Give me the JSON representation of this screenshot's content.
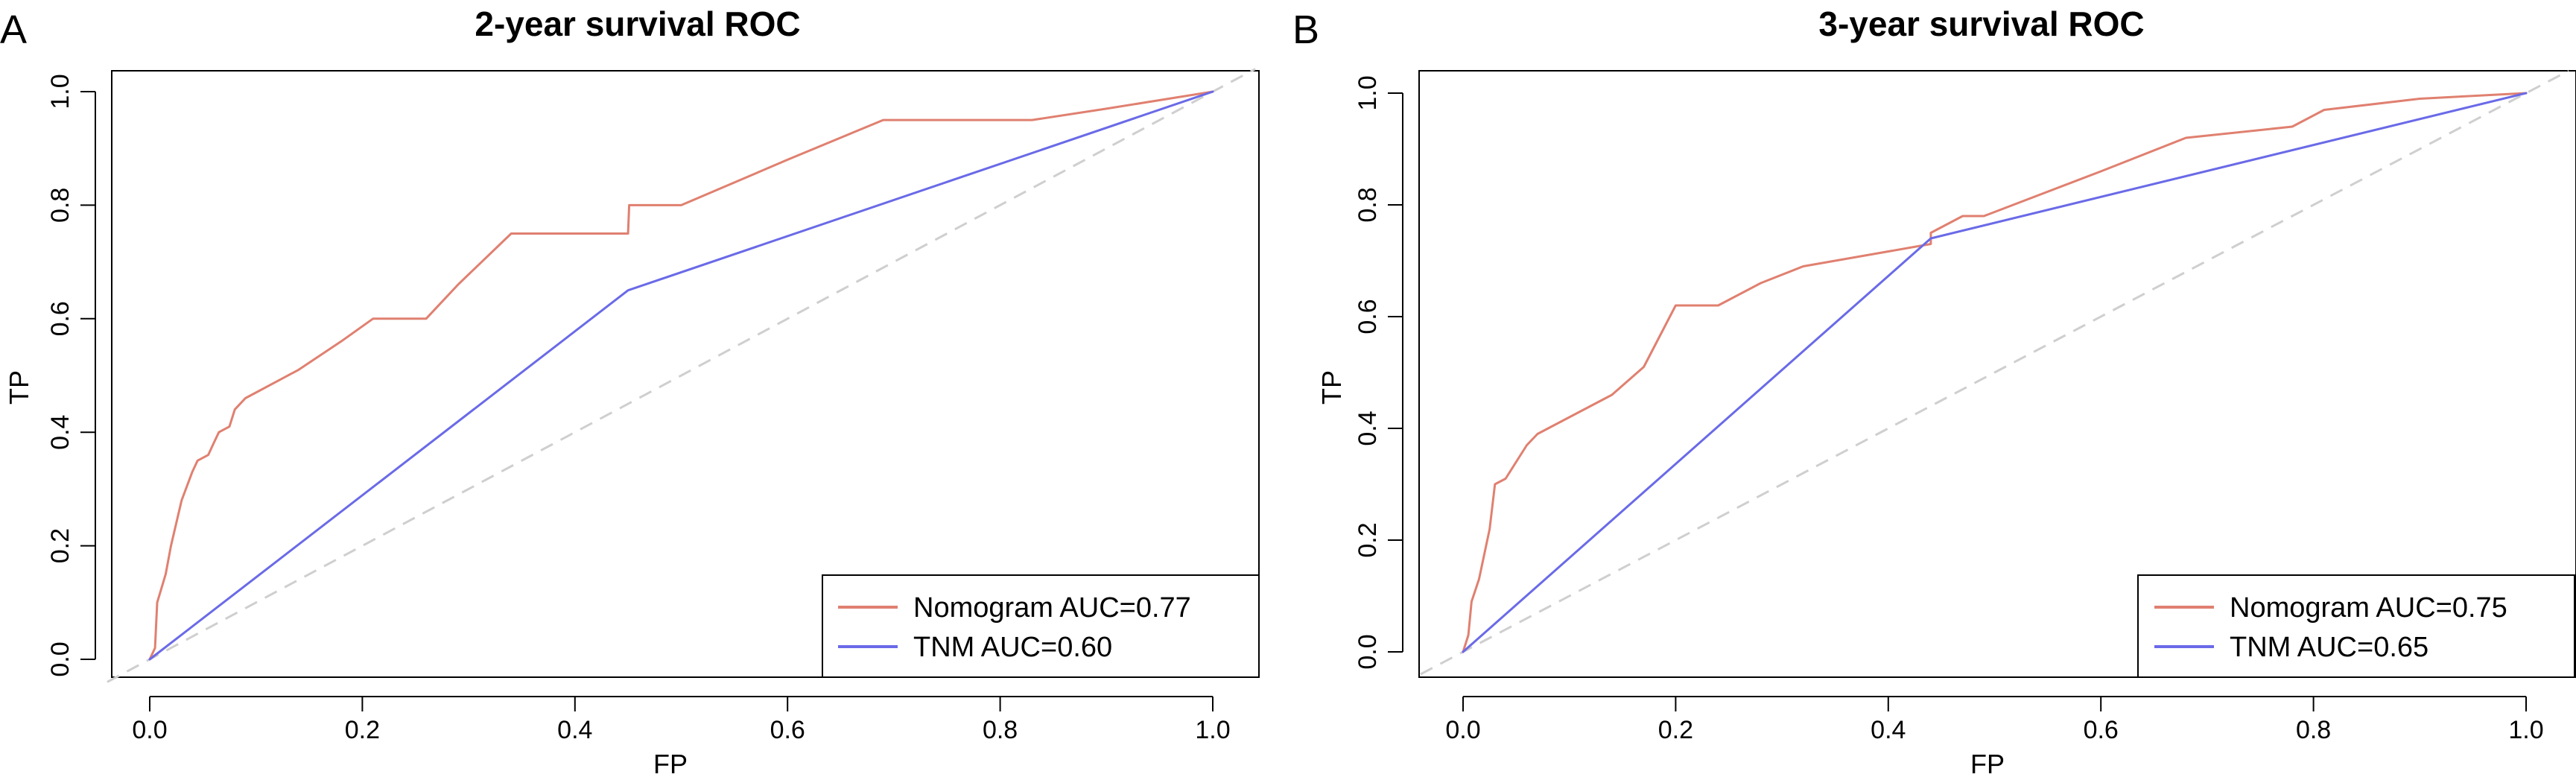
{
  "chart_data": [
    {
      "type": "line",
      "panel_label": "A",
      "title": "2-year survival ROC",
      "xlabel": "FP",
      "ylabel": "TP",
      "xlim": [
        0,
        1
      ],
      "ylim": [
        0,
        1
      ],
      "xticks": [
        "0.0",
        "0.2",
        "0.4",
        "0.6",
        "0.8",
        "1.0"
      ],
      "yticks": [
        "0.0",
        "0.2",
        "0.4",
        "0.6",
        "0.8",
        "1.0"
      ],
      "legend_position": "bottom-right",
      "diagonal_reference": true,
      "series": [
        {
          "name": "Nomogram AUC=0.77",
          "color": "#e08070",
          "points": [
            [
              0,
              0
            ],
            [
              0.005,
              0.02
            ],
            [
              0.007,
              0.1
            ],
            [
              0.015,
              0.15
            ],
            [
              0.02,
              0.2
            ],
            [
              0.03,
              0.28
            ],
            [
              0.04,
              0.33
            ],
            [
              0.045,
              0.35
            ],
            [
              0.055,
              0.36
            ],
            [
              0.06,
              0.38
            ],
            [
              0.065,
              0.4
            ],
            [
              0.075,
              0.41
            ],
            [
              0.08,
              0.44
            ],
            [
              0.09,
              0.46
            ],
            [
              0.14,
              0.51
            ],
            [
              0.18,
              0.56
            ],
            [
              0.21,
              0.6
            ],
            [
              0.26,
              0.6
            ],
            [
              0.29,
              0.66
            ],
            [
              0.34,
              0.75
            ],
            [
              0.45,
              0.75
            ],
            [
              0.451,
              0.8
            ],
            [
              0.5,
              0.8
            ],
            [
              0.6,
              0.88
            ],
            [
              0.69,
              0.95
            ],
            [
              0.83,
              0.95
            ],
            [
              0.9,
              0.97
            ],
            [
              1.0,
              1.0
            ]
          ]
        },
        {
          "name": "TNM AUC=0.60",
          "color": "#6a6ae8",
          "points": [
            [
              0,
              0
            ],
            [
              0.45,
              0.65
            ],
            [
              1.0,
              1.0
            ]
          ]
        }
      ]
    },
    {
      "type": "line",
      "panel_label": "B",
      "title": "3-year survival ROC",
      "xlabel": "FP",
      "ylabel": "TP",
      "xlim": [
        0,
        1
      ],
      "ylim": [
        0,
        1
      ],
      "xticks": [
        "0.0",
        "0.2",
        "0.4",
        "0.6",
        "0.8",
        "1.0"
      ],
      "yticks": [
        "0.0",
        "0.2",
        "0.4",
        "0.6",
        "0.8",
        "1.0"
      ],
      "legend_position": "bottom-right",
      "diagonal_reference": true,
      "series": [
        {
          "name": "Nomogram AUC=0.75",
          "color": "#e08070",
          "points": [
            [
              0,
              0
            ],
            [
              0.005,
              0.03
            ],
            [
              0.008,
              0.09
            ],
            [
              0.015,
              0.13
            ],
            [
              0.025,
              0.22
            ],
            [
              0.03,
              0.3
            ],
            [
              0.04,
              0.31
            ],
            [
              0.05,
              0.34
            ],
            [
              0.06,
              0.37
            ],
            [
              0.07,
              0.39
            ],
            [
              0.1,
              0.42
            ],
            [
              0.14,
              0.46
            ],
            [
              0.17,
              0.51
            ],
            [
              0.2,
              0.62
            ],
            [
              0.24,
              0.62
            ],
            [
              0.28,
              0.66
            ],
            [
              0.32,
              0.69
            ],
            [
              0.38,
              0.71
            ],
            [
              0.44,
              0.73
            ],
            [
              0.44,
              0.75
            ],
            [
              0.47,
              0.78
            ],
            [
              0.49,
              0.78
            ],
            [
              0.6,
              0.86
            ],
            [
              0.68,
              0.92
            ],
            [
              0.78,
              0.94
            ],
            [
              0.81,
              0.97
            ],
            [
              0.9,
              0.99
            ],
            [
              1.0,
              1.0
            ]
          ]
        },
        {
          "name": "TNM AUC=0.65",
          "color": "#6a6ae8",
          "points": [
            [
              0,
              0
            ],
            [
              0.44,
              0.74
            ],
            [
              1.0,
              1.0
            ]
          ]
        }
      ]
    }
  ]
}
